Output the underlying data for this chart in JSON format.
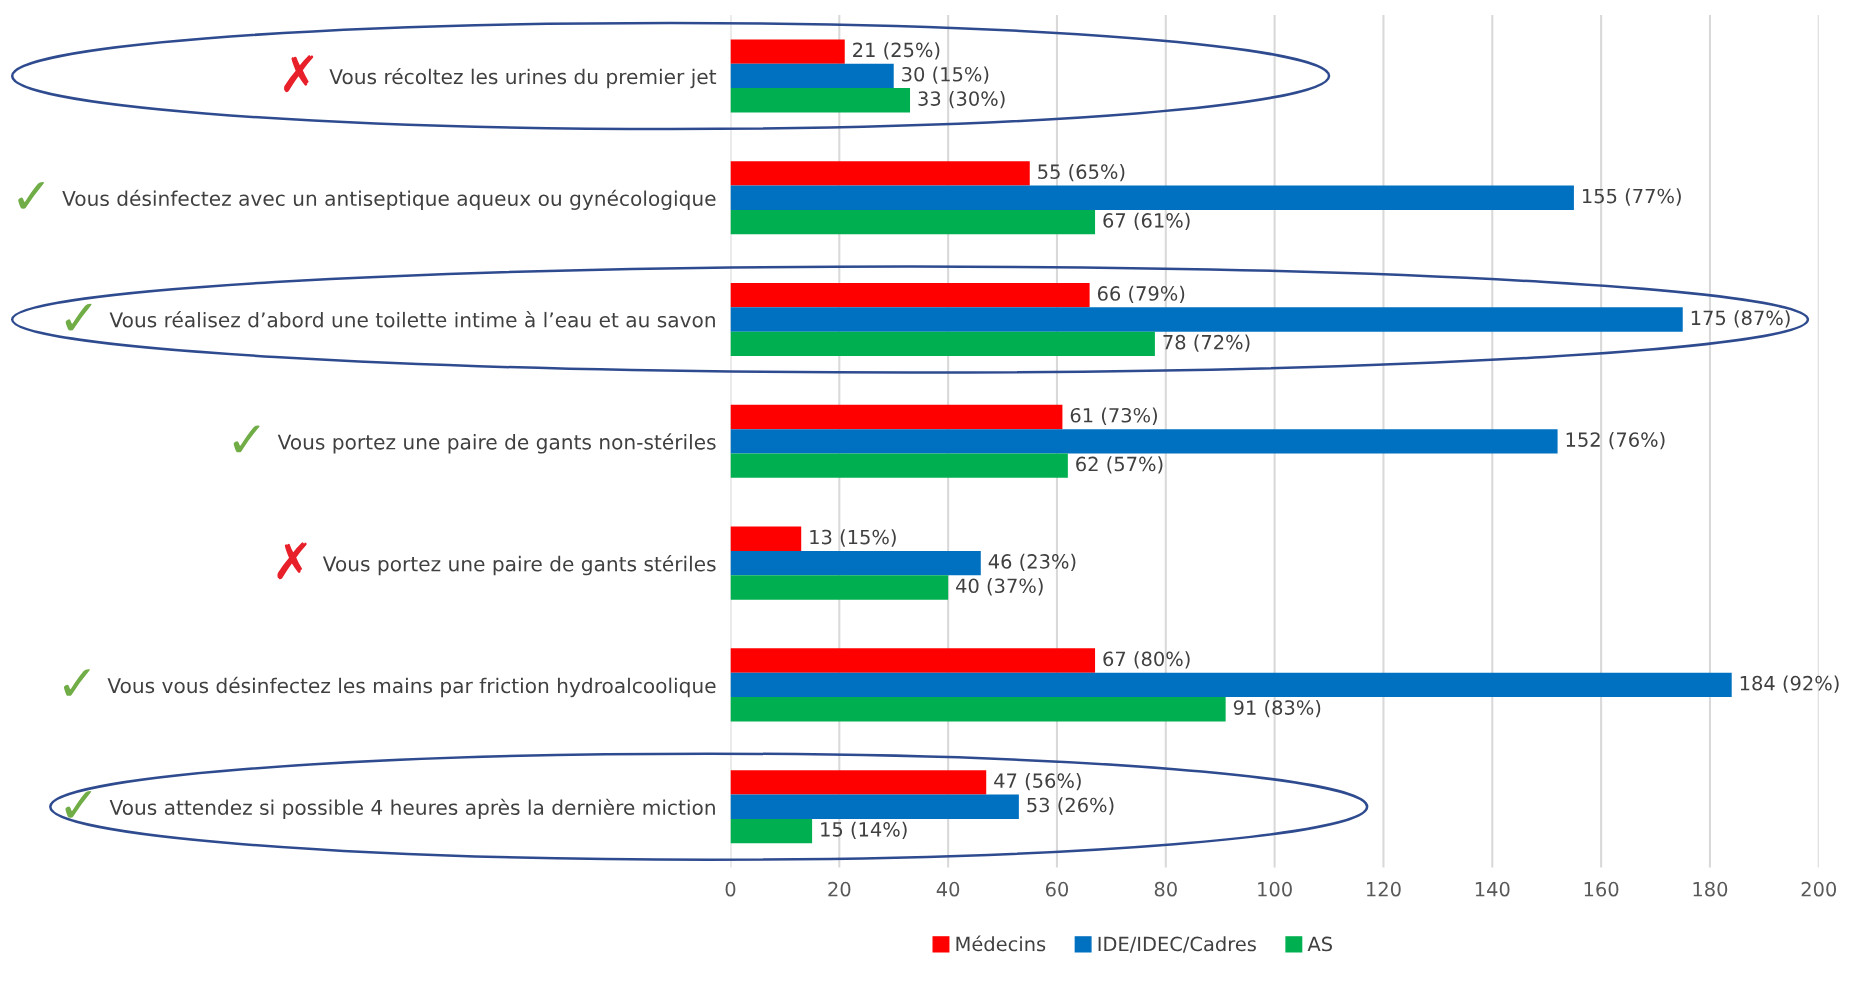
{
  "chart_data": {
    "type": "bar",
    "orientation": "horizontal",
    "categories": [
      "Vous récoltez les urines du premier jet",
      "Vous désinfectez avec un antiseptique aqueux ou gynécologique",
      "Vous réalisez d’abord une toilette intime à l’eau et au savon",
      "Vous portez une paire de gants non-stériles",
      "Vous portez une paire de gants stériles",
      "Vous vous désinfectez les mains par friction hydroalcoolique",
      "Vous attendez si possible 4 heures après la dernière miction"
    ],
    "series": [
      {
        "name": "Médecins",
        "color": "#ff0000",
        "values": [
          21,
          55,
          66,
          61,
          13,
          67,
          47
        ],
        "value_labels": [
          "21 (25%)",
          "55 (65%)",
          "66 (79%)",
          "61 (73%)",
          "13 (15%)",
          "67 (80%)",
          "47 (56%)"
        ]
      },
      {
        "name": "IDE/IDEC/Cadres",
        "color": "#0070c0",
        "values": [
          30,
          155,
          175,
          152,
          46,
          184,
          53
        ],
        "value_labels": [
          "30 (15%)",
          "155 (77%)",
          "175 (87%)",
          "152 (76%)",
          "46 (23%)",
          "184 (92%)",
          "53 (26%)"
        ]
      },
      {
        "name": "AS",
        "color": "#00b050",
        "values": [
          33,
          67,
          78,
          62,
          40,
          91,
          15
        ],
        "value_labels": [
          "33 (30%)",
          "67 (61%)",
          "78 (72%)",
          "62 (57%)",
          "40 (37%)",
          "91 (83%)",
          "15 (14%)"
        ]
      }
    ],
    "xlim": [
      0,
      200
    ],
    "xticks": [
      0,
      20,
      40,
      60,
      80,
      100,
      120,
      140,
      160,
      180,
      200
    ],
    "grid": "x",
    "legend": "bottom",
    "annotations": [
      "✗",
      "✓",
      "✓",
      "✓",
      "✗",
      "✓",
      "✓"
    ]
  }
}
